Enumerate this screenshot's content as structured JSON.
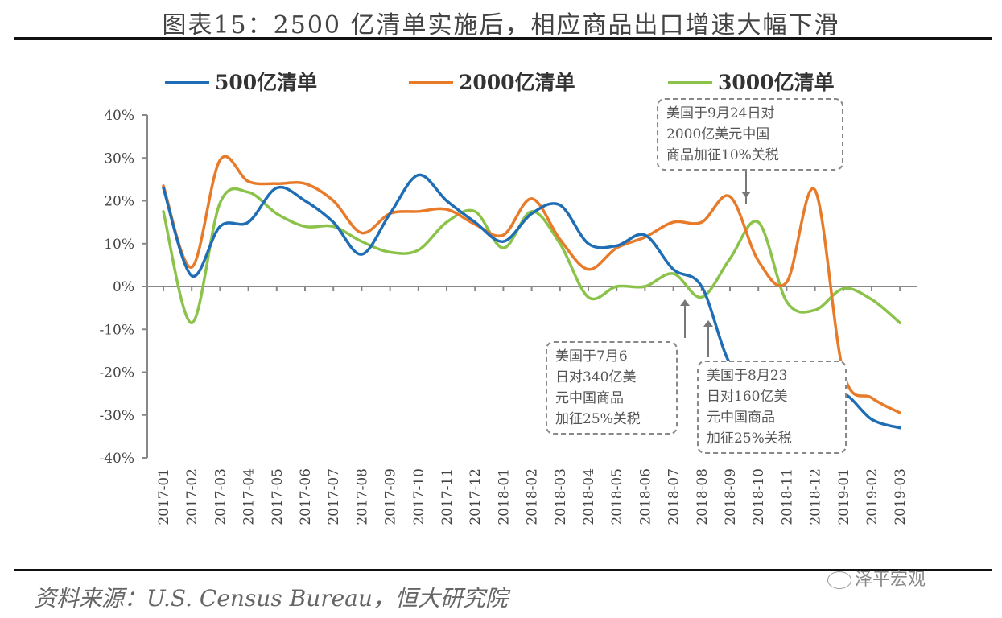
{
  "title": "图表15：2500 亿清单实施后，相应商品出口增速大幅下滑",
  "source": "资料来源：U.S. Census Bureau，恒大研究院",
  "watermark": "泽平宏观",
  "annotations": [
    {
      "text": "美国于9月24日对\n2000亿美元中国\n商品加征10%关税"
    },
    {
      "text": "美国于7月6\n日对340亿美\n元中国商品\n加征25%关税"
    },
    {
      "text": "美国于8月23\n日对160亿美\n元中国商品\n加征25%关税"
    }
  ],
  "chart_data": {
    "type": "line",
    "categories": [
      "2017-01",
      "2017-02",
      "2017-03",
      "2017-04",
      "2017-05",
      "2017-06",
      "2017-07",
      "2017-08",
      "2017-09",
      "2017-10",
      "2017-11",
      "2017-12",
      "2018-01",
      "2018-02",
      "2018-03",
      "2018-04",
      "2018-05",
      "2018-06",
      "2018-07",
      "2018-08",
      "2018-09",
      "2018-10",
      "2018-11",
      "2018-12",
      "2019-01",
      "2019-02",
      "2019-03"
    ],
    "series": [
      {
        "name": "500亿清单",
        "color": "#1f6eb5",
        "values": [
          23,
          2.5,
          14,
          15,
          23,
          20,
          15,
          7.5,
          17,
          26,
          20,
          15,
          10.5,
          17,
          19,
          10,
          9.5,
          12,
          4,
          0,
          -18,
          -22,
          -26,
          -27,
          -25,
          -31,
          -33
        ]
      },
      {
        "name": "2000亿清单",
        "color": "#e87b2a",
        "values": [
          23.5,
          4.5,
          29.5,
          24.5,
          24,
          24,
          20,
          12.5,
          17,
          17.5,
          18,
          14.5,
          12,
          20.5,
          11,
          4,
          9,
          11.5,
          15,
          15,
          21,
          6,
          1,
          22.5,
          -20,
          -26,
          -29.5
        ]
      },
      {
        "name": "3000亿清单",
        "color": "#8bc34a",
        "values": [
          17.5,
          -8.5,
          19.5,
          22,
          17,
          14,
          14,
          10.5,
          8,
          8.5,
          15,
          17.5,
          9,
          17.5,
          10,
          -2.5,
          0,
          0,
          3,
          -2.5,
          6.5,
          15,
          -3.5,
          -5.5,
          -0.5,
          -3,
          -8.5
        ]
      }
    ],
    "ylim": [
      -40,
      40
    ],
    "yticks": [
      40,
      30,
      20,
      10,
      0,
      -10,
      -20,
      -30,
      -40
    ],
    "ytick_labels": [
      "40%",
      "30%",
      "20%",
      "10%",
      "0%",
      "-10%",
      "-20%",
      "-30%",
      "-40%"
    ],
    "legend": "top",
    "grid": false
  }
}
